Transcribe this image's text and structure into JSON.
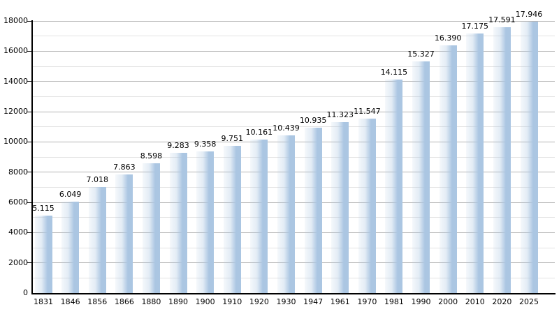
{
  "chart_data": {
    "type": "bar",
    "title": "",
    "categories": [
      "1831",
      "1846",
      "1856",
      "1866",
      "1880",
      "1890",
      "1900",
      "1910",
      "1920",
      "1930",
      "1947",
      "1961",
      "1970",
      "1981",
      "1990",
      "2000",
      "2010",
      "2020",
      "2025"
    ],
    "values": [
      5115,
      6049,
      7018,
      7863,
      8598,
      9283,
      9358,
      9751,
      10161,
      10439,
      10935,
      11323,
      11547,
      14115,
      15327,
      16390,
      17175,
      17591,
      17946
    ],
    "value_labels": [
      "5.115",
      "6.049",
      "7.018",
      "7.863",
      "8.598",
      "9.283",
      "9.358",
      "9.751",
      "10.161",
      "10.439",
      "10.935",
      "11.323",
      "11.547",
      "14.115",
      "15.327",
      "16.390",
      "17.175",
      "17.591",
      "17.946"
    ],
    "xlabel": "",
    "ylabel": "",
    "ylim": [
      0,
      18000
    ],
    "ytick_step": 2000,
    "minor_grid_step": 1000,
    "ytick_labels": [
      "0",
      "2000",
      "4000",
      "6000",
      "8000",
      "10000",
      "12000",
      "14000",
      "16000",
      "18000"
    ],
    "grid": "horizontal, minor every 1000, major every 2000",
    "legend_position": "none",
    "colors": {
      "bar_fill": "#abc6e2",
      "major_grid": "#b3b3b3",
      "minor_grid": "#e3e3e3",
      "axis": "#000000",
      "text": "#000000",
      "background": "#ffffff"
    }
  }
}
